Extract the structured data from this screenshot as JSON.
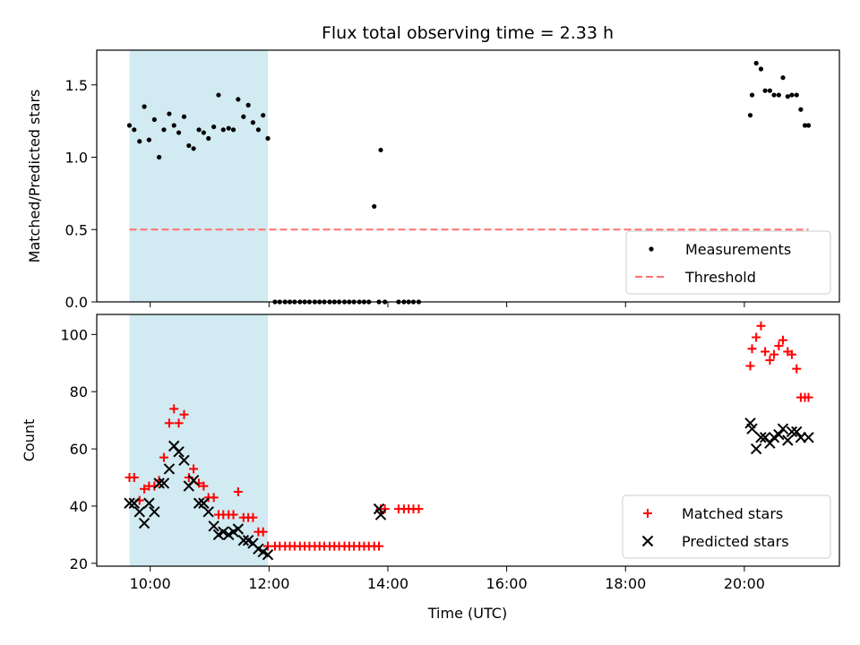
{
  "chart_data": {
    "title": "Flux total observing time = 2.33 h",
    "xlabel": "Time (UTC)",
    "x_unit": "hours UTC",
    "xlim": [
      9.1,
      21.6
    ],
    "xticks": [
      {
        "value": 10,
        "label": "10:00"
      },
      {
        "value": 12,
        "label": "12:00"
      },
      {
        "value": 14,
        "label": "14:00"
      },
      {
        "value": 16,
        "label": "16:00"
      },
      {
        "value": 18,
        "label": "18:00"
      },
      {
        "value": 20,
        "label": "20:00"
      }
    ],
    "highlight_span": [
      9.65,
      11.98
    ],
    "highlight_color": "#add8e6",
    "panels": [
      {
        "type": "scatter",
        "ylabel": "Matched/Predicted stars",
        "ylim": [
          0,
          1.74
        ],
        "yticks": [
          {
            "value": 0,
            "label": "0.0"
          },
          {
            "value": 0.5,
            "label": "0.5"
          },
          {
            "value": 1.0,
            "label": "1.0"
          },
          {
            "value": 1.5,
            "label": "1.5"
          }
        ],
        "legend_position": "lower-right",
        "series": [
          {
            "name": "Measurements",
            "marker": "dot",
            "color": "#000000",
            "x": [
              9.65,
              9.73,
              9.82,
              9.9,
              9.98,
              10.07,
              10.15,
              10.23,
              10.32,
              10.4,
              10.48,
              10.57,
              10.65,
              10.73,
              10.82,
              10.9,
              10.98,
              11.07,
              11.15,
              11.23,
              11.32,
              11.4,
              11.48,
              11.57,
              11.65,
              11.73,
              11.82,
              11.9,
              11.98,
              12.1,
              12.18,
              12.27,
              12.35,
              12.43,
              12.52,
              12.6,
              12.68,
              12.77,
              12.85,
              12.93,
              13.02,
              13.1,
              13.18,
              13.27,
              13.35,
              13.43,
              13.52,
              13.6,
              13.68,
              13.77,
              13.85,
              13.88,
              13.95,
              14.18,
              14.27,
              14.35,
              14.43,
              14.52,
              20.1,
              20.13,
              20.2,
              20.28,
              20.35,
              20.43,
              20.5,
              20.58,
              20.65,
              20.73,
              20.8,
              20.88,
              20.95,
              21.02,
              21.08
            ],
            "y": [
              1.22,
              1.19,
              1.11,
              1.35,
              1.12,
              1.26,
              1.0,
              1.19,
              1.3,
              1.22,
              1.17,
              1.28,
              1.08,
              1.06,
              1.19,
              1.17,
              1.13,
              1.21,
              1.43,
              1.19,
              1.2,
              1.19,
              1.4,
              1.28,
              1.36,
              1.24,
              1.19,
              1.29,
              1.13,
              0,
              0,
              0,
              0,
              0,
              0,
              0,
              0,
              0,
              0,
              0,
              0,
              0,
              0,
              0,
              0,
              0,
              0,
              0,
              0,
              0.66,
              0,
              1.05,
              0,
              0,
              0,
              0,
              0,
              0,
              1.29,
              1.43,
              1.65,
              1.61,
              1.46,
              1.46,
              1.43,
              1.43,
              1.55,
              1.42,
              1.43,
              1.43,
              1.33,
              1.22,
              1.22
            ]
          },
          {
            "name": "Threshold",
            "marker": "dashed-line",
            "color": "#ff7070",
            "x": [
              9.65,
              21.08
            ],
            "y": [
              0.5,
              0.5
            ]
          }
        ]
      },
      {
        "type": "scatter",
        "ylabel": "Count",
        "ylim": [
          19,
          107
        ],
        "yticks": [
          {
            "value": 20,
            "label": "20"
          },
          {
            "value": 40,
            "label": "40"
          },
          {
            "value": 60,
            "label": "60"
          },
          {
            "value": 80,
            "label": "80"
          },
          {
            "value": 100,
            "label": "100"
          }
        ],
        "legend_position": "lower-right",
        "series": [
          {
            "name": "Matched stars",
            "marker": "plus",
            "color": "#ff0000",
            "x": [
              9.65,
              9.73,
              9.82,
              9.9,
              9.98,
              10.07,
              10.15,
              10.23,
              10.32,
              10.4,
              10.48,
              10.57,
              10.65,
              10.73,
              10.82,
              10.9,
              10.98,
              11.07,
              11.15,
              11.23,
              11.32,
              11.4,
              11.48,
              11.57,
              11.65,
              11.73,
              11.82,
              11.9,
              11.98,
              12.1,
              12.18,
              12.27,
              12.35,
              12.43,
              12.52,
              12.6,
              12.68,
              12.77,
              12.85,
              12.93,
              13.02,
              13.1,
              13.18,
              13.27,
              13.35,
              13.43,
              13.52,
              13.6,
              13.68,
              13.77,
              13.85,
              13.88,
              13.95,
              14.18,
              14.27,
              14.35,
              14.43,
              14.52,
              20.1,
              20.13,
              20.2,
              20.28,
              20.35,
              20.43,
              20.5,
              20.58,
              20.65,
              20.73,
              20.8,
              20.88,
              20.95,
              21.02,
              21.08
            ],
            "y": [
              50,
              50,
              42,
              46,
              47,
              47,
              49,
              57,
              69,
              74,
              69,
              72,
              50,
              53,
              48,
              47,
              43,
              43,
              37,
              37,
              37,
              37,
              45,
              36,
              36,
              36,
              31,
              31,
              26,
              26,
              26,
              26,
              26,
              26,
              26,
              26,
              26,
              26,
              26,
              26,
              26,
              26,
              26,
              26,
              26,
              26,
              26,
              26,
              26,
              26,
              26,
              39,
              39,
              39,
              39,
              39,
              39,
              39,
              89,
              95,
              99,
              103,
              94,
              91,
              93,
              96,
              98,
              94,
              93,
              88,
              78,
              78,
              78
            ]
          },
          {
            "name": "Predicted stars",
            "marker": "x",
            "color": "#000000",
            "x": [
              9.65,
              9.73,
              9.82,
              9.9,
              9.98,
              10.07,
              10.15,
              10.23,
              10.32,
              10.4,
              10.48,
              10.57,
              10.65,
              10.73,
              10.82,
              10.9,
              10.98,
              11.07,
              11.15,
              11.23,
              11.32,
              11.4,
              11.48,
              11.57,
              11.65,
              11.73,
              11.82,
              11.9,
              11.98,
              13.85,
              13.88,
              20.1,
              20.13,
              20.2,
              20.28,
              20.35,
              20.43,
              20.5,
              20.58,
              20.65,
              20.73,
              20.8,
              20.88,
              20.95,
              21.08
            ],
            "y": [
              41,
              41,
              38,
              34,
              41,
              38,
              48,
              48,
              53,
              61,
              59,
              56,
              47,
              49,
              41,
              41,
              38,
              33,
              30,
              31,
              30,
              31,
              32,
              28,
              28,
              27,
              25,
              24,
              23,
              39,
              37,
              69,
              67,
              60,
              64,
              64,
              62,
              64,
              65,
              67,
              63,
              66,
              66,
              64,
              64
            ]
          }
        ]
      }
    ]
  }
}
